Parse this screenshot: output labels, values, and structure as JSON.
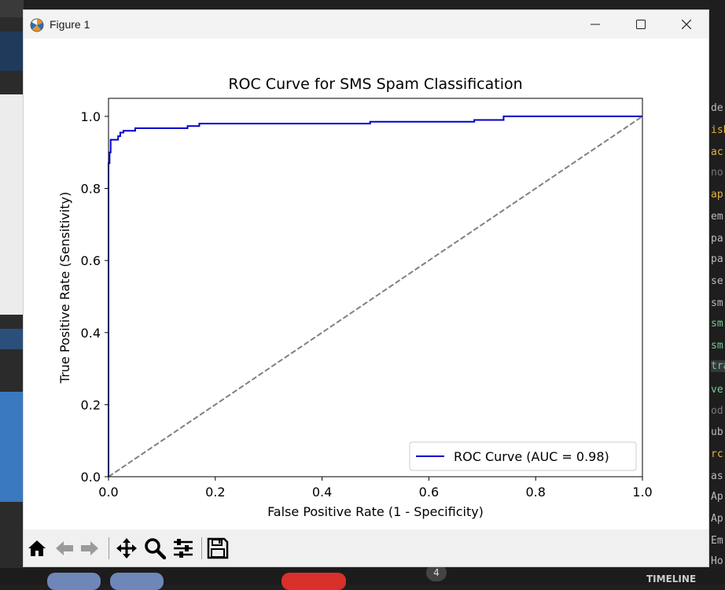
{
  "window": {
    "title": "Figure 1",
    "icons": {
      "app": "matplotlib-icon",
      "minimize": "minimize-icon",
      "maximize": "maximize-icon",
      "close": "close-icon"
    }
  },
  "toolbar": {
    "buttons": [
      {
        "name": "home",
        "icon": "home-icon"
      },
      {
        "name": "back",
        "icon": "arrow-left-icon"
      },
      {
        "name": "forward",
        "icon": "arrow-right-icon"
      },
      {
        "name": "pan",
        "icon": "move-icon"
      },
      {
        "name": "zoom",
        "icon": "magnifier-icon"
      },
      {
        "name": "configure-subplots",
        "icon": "sliders-icon"
      },
      {
        "name": "save",
        "icon": "floppy-disk-icon"
      }
    ]
  },
  "background": {
    "taskbar_label": "TIMELINE",
    "badge": "4"
  },
  "chart_data": {
    "type": "line",
    "title": "ROC Curve for SMS Spam Classification",
    "xlabel": "False Positive Rate (1 - Specificity)",
    "ylabel": "True Positive Rate (Sensitivity)",
    "xlim": [
      0.0,
      1.0
    ],
    "ylim": [
      0.0,
      1.05
    ],
    "xticks": [
      "0.0",
      "0.2",
      "0.4",
      "0.6",
      "0.8",
      "1.0"
    ],
    "yticks": [
      "0.0",
      "0.2",
      "0.4",
      "0.6",
      "0.8",
      "1.0"
    ],
    "grid": false,
    "legend_position": "lower-right",
    "series": [
      {
        "name": "ROC Curve (AUC = 0.98)",
        "color": "#0000cd",
        "style": "solid",
        "x": [
          0.0,
          0.0,
          0.002,
          0.002,
          0.004,
          0.004,
          0.006,
          0.006,
          0.018,
          0.018,
          0.022,
          0.022,
          0.028,
          0.028,
          0.05,
          0.05,
          0.148,
          0.148,
          0.17,
          0.17,
          0.49,
          0.49,
          0.685,
          0.685,
          0.74,
          0.74,
          1.0
        ],
        "y": [
          0.0,
          0.87,
          0.87,
          0.9,
          0.9,
          0.935,
          0.935,
          0.935,
          0.935,
          0.945,
          0.945,
          0.955,
          0.955,
          0.96,
          0.96,
          0.967,
          0.967,
          0.973,
          0.973,
          0.98,
          0.98,
          0.985,
          0.985,
          0.99,
          0.99,
          1.0,
          1.0
        ]
      },
      {
        "name": "",
        "color": "#808080",
        "style": "dashed",
        "x": [
          0.0,
          1.0
        ],
        "y": [
          0.0,
          1.0
        ]
      }
    ]
  }
}
